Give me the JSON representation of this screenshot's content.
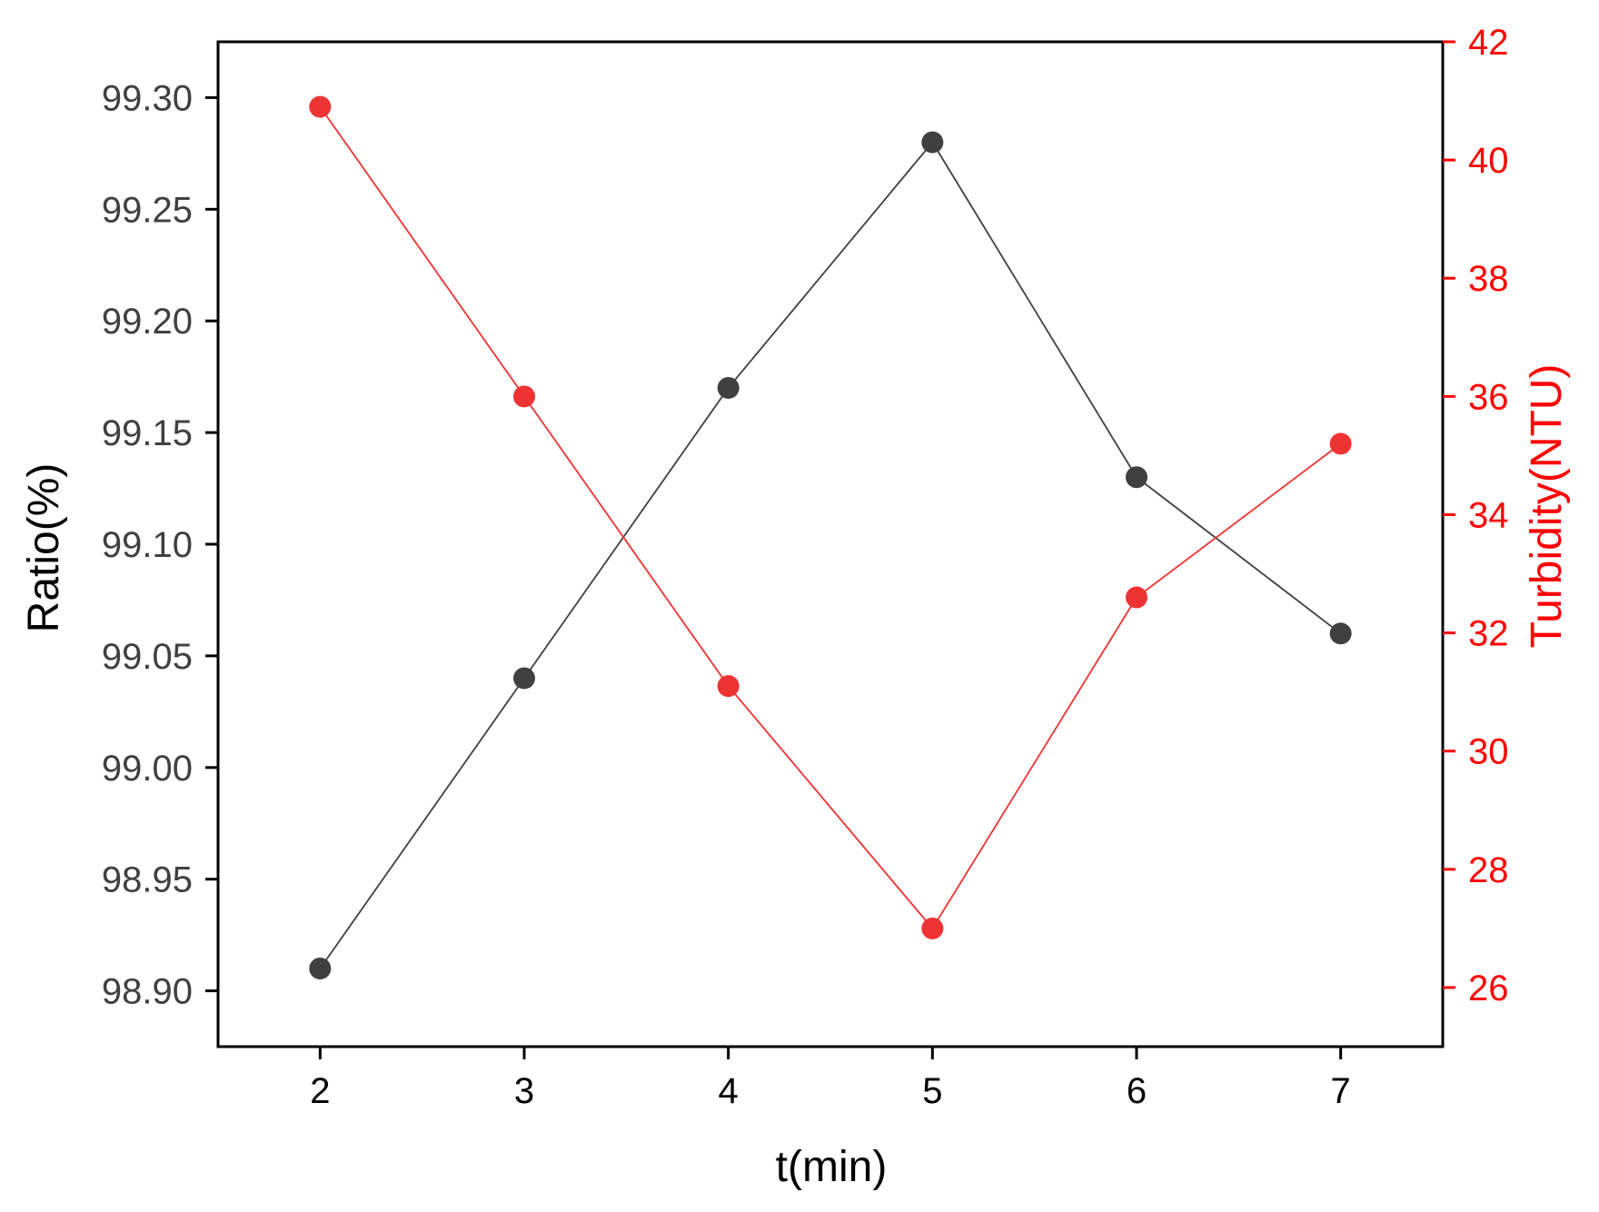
{
  "chart_data": {
    "type": "line",
    "xlabel": "t(min)",
    "ylabel_left": "Ratio(%)",
    "ylabel_right": "Turbidity(NTU)",
    "x": [
      2,
      3,
      4,
      5,
      6,
      7
    ],
    "x_ticks": [
      "2",
      "3",
      "4",
      "5",
      "6",
      "7"
    ],
    "xlim": [
      1.5,
      7.5
    ],
    "y_left_lim": [
      98.875,
      99.325
    ],
    "y_right_lim": [
      25,
      42
    ],
    "y_left_ticks": [
      "98.90",
      "98.95",
      "99.00",
      "99.05",
      "99.10",
      "99.15",
      "99.20",
      "99.25",
      "99.30"
    ],
    "y_right_ticks": [
      "26",
      "28",
      "30",
      "32",
      "34",
      "36",
      "38",
      "40",
      "42"
    ],
    "grid": false,
    "series": [
      {
        "axis": "left",
        "color": "#404040",
        "values": [
          98.91,
          99.04,
          99.17,
          99.28,
          99.13,
          99.06
        ]
      },
      {
        "axis": "right",
        "color": "#ee3333",
        "values": [
          40.9,
          36.0,
          31.1,
          27.0,
          32.6,
          35.2
        ]
      }
    ],
    "colors": {
      "left_axis": "#404040",
      "right_axis": "#ff0000",
      "frame": "#000000"
    }
  }
}
